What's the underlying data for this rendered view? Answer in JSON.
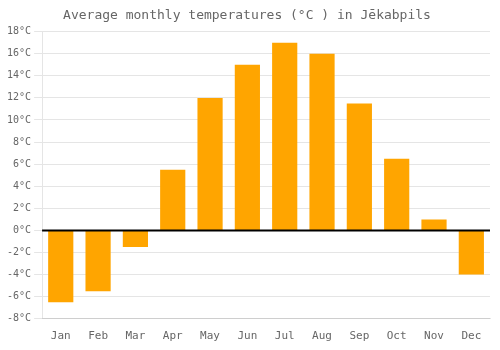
{
  "chart_data": {
    "type": "bar",
    "title": "Average monthly temperatures (°C ) in Jēkabpils",
    "categories": [
      "Jan",
      "Feb",
      "Mar",
      "Apr",
      "May",
      "Jun",
      "Jul",
      "Aug",
      "Sep",
      "Oct",
      "Nov",
      "Dec"
    ],
    "values": [
      -6.5,
      -5.5,
      -1.5,
      5.5,
      12.0,
      15.0,
      17.0,
      16.0,
      11.5,
      6.5,
      1.0,
      -4.0
    ],
    "color": "#FFA500",
    "ylim": [
      -8,
      18
    ],
    "yticks": [
      {
        "value": -8,
        "label": "-8°C"
      },
      {
        "value": -6,
        "label": "-6°C"
      },
      {
        "value": -4,
        "label": "-4°C"
      },
      {
        "value": -2,
        "label": "-2°C"
      },
      {
        "value": 0,
        "label": "0°C"
      },
      {
        "value": 2,
        "label": "2°C"
      },
      {
        "value": 4,
        "label": "4°C"
      },
      {
        "value": 6,
        "label": "6°C"
      },
      {
        "value": 8,
        "label": "8°C"
      },
      {
        "value": 10,
        "label": "10°C"
      },
      {
        "value": 12,
        "label": "12°C"
      },
      {
        "value": 14,
        "label": "14°C"
      },
      {
        "value": 16,
        "label": "16°C"
      },
      {
        "value": 18,
        "label": "18°C"
      }
    ],
    "grid": true
  }
}
